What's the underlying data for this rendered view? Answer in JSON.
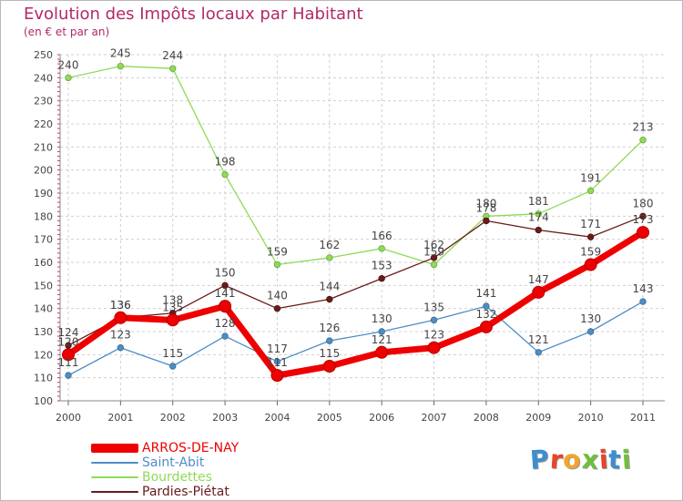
{
  "header": {
    "title": "Evolution des Impôts locaux par Habitant",
    "subtitle": "(en € et par an)"
  },
  "logo": {
    "text": "Proxiti"
  },
  "chart_data": {
    "type": "line",
    "title": "Evolution des Impôts locaux par Habitant",
    "subtitle": "(en € et par an)",
    "xlabel": "",
    "ylabel": "",
    "x": [
      "2000",
      "2001",
      "2002",
      "2003",
      "2004",
      "2005",
      "2006",
      "2007",
      "2008",
      "2009",
      "2010",
      "2011"
    ],
    "ylim": [
      100,
      250
    ],
    "yticks": [
      100,
      110,
      120,
      130,
      140,
      150,
      160,
      170,
      180,
      190,
      200,
      210,
      220,
      230,
      240,
      250
    ],
    "grid": true,
    "legend_position": "bottom-left",
    "series": [
      {
        "name": "ARROS-DE-NAY",
        "color": "#ee0000",
        "values": [
          120,
          136,
          135,
          141,
          111,
          115,
          121,
          123,
          132,
          147,
          159,
          173
        ]
      },
      {
        "name": "Saint-Abit",
        "color": "#4d8ec6",
        "values": [
          111,
          123,
          115,
          128,
          117,
          126,
          130,
          135,
          141,
          121,
          130,
          143
        ]
      },
      {
        "name": "Bourdettes",
        "color": "#8fda58",
        "values": [
          240,
          245,
          244,
          198,
          159,
          162,
          166,
          159,
          180,
          181,
          191,
          213
        ]
      },
      {
        "name": "Pardies-Piétat",
        "color": "#6b1a1a",
        "values": [
          124,
          136,
          138,
          150,
          140,
          144,
          153,
          162,
          178,
          174,
          171,
          180
        ]
      }
    ]
  }
}
